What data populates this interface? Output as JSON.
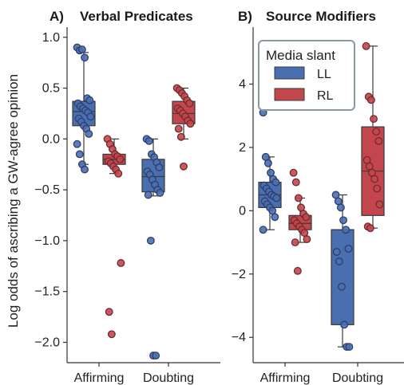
{
  "colors": {
    "LL": "#4a6fb0",
    "RL": "#c4464d",
    "LL_edge": "#2e3d6b",
    "RL_edge": "#6e2b2e",
    "legend_border": "#8a9aa0"
  },
  "legend": {
    "title": "Media slant",
    "items": [
      "LL",
      "RL"
    ],
    "placement": "top-right of panel B"
  },
  "chart_data": [
    {
      "type": "box",
      "panel_label": "A)",
      "title": "Verbal Predicates",
      "ylabel": "Log odds of ascribing a GW-agree opinion",
      "categories": [
        "Affirming",
        "Doubting"
      ],
      "ylim": [
        -2.2,
        1.1
      ],
      "yticks": [
        1.0,
        0.5,
        0.0,
        -0.5,
        -1.0,
        -1.5,
        -2.0
      ],
      "ytick_labels": [
        "1.0",
        "0.5",
        "0.0",
        "−0.5",
        "−1.0",
        "−1.5",
        "−2.0"
      ],
      "series": [
        {
          "name": "LL",
          "boxes": [
            {
              "category": "Affirming",
              "q1": 0.13,
              "median": 0.27,
              "q3": 0.37,
              "whislo": -0.25,
              "whishi": 0.85,
              "points": [
                0.9,
                0.87,
                0.88,
                0.8,
                0.4,
                0.38,
                0.35,
                0.32,
                0.3,
                0.28,
                0.26,
                0.22,
                0.2,
                0.17,
                0.13,
                0.1,
                0.05,
                -0.05,
                -0.15,
                -0.25,
                -0.3
              ]
            },
            {
              "category": "Doubting",
              "q1": -0.52,
              "median": -0.37,
              "q3": -0.2,
              "whislo": -0.56,
              "whishi": 0.0,
              "points": [
                0.0,
                -0.02,
                -0.15,
                -0.18,
                -0.23,
                -0.28,
                -0.32,
                -0.35,
                -0.4,
                -0.45,
                -0.5,
                -0.53,
                -0.55,
                -1.0,
                -2.13,
                -2.13
              ]
            }
          ]
        },
        {
          "name": "RL",
          "boxes": [
            {
              "category": "Affirming",
              "q1": -0.25,
              "median": -0.2,
              "q3": -0.15,
              "whislo": -0.34,
              "whishi": 0.0,
              "points": [
                0.0,
                -0.05,
                -0.1,
                -0.15,
                -0.17,
                -0.2,
                -0.22,
                -0.24,
                -0.27,
                -0.3,
                -0.34,
                -1.22,
                -1.7,
                -1.92
              ]
            },
            {
              "category": "Doubting",
              "q1": 0.15,
              "median": 0.25,
              "q3": 0.37,
              "whislo": 0.0,
              "whishi": 0.5,
              "points": [
                0.5,
                0.48,
                0.45,
                0.42,
                0.38,
                0.35,
                0.3,
                0.28,
                0.25,
                0.22,
                0.18,
                0.15,
                0.1,
                0.02,
                -0.27
              ]
            }
          ]
        }
      ]
    },
    {
      "type": "box",
      "panel_label": "B)",
      "title": "Source Modifiers",
      "ylabel": "",
      "categories": [
        "Affirming",
        "Doubting"
      ],
      "ylim": [
        -4.8,
        5.8
      ],
      "yticks": [
        4,
        2,
        0,
        -2,
        -4
      ],
      "ytick_labels": [
        "4",
        "2",
        "0",
        "−2",
        "−4"
      ],
      "series": [
        {
          "name": "LL",
          "boxes": [
            {
              "category": "Affirming",
              "q1": 0.1,
              "median": 0.5,
              "q3": 0.9,
              "whislo": -0.6,
              "whishi": 1.7,
              "points": [
                3.1,
                1.7,
                1.5,
                1.2,
                1.0,
                0.9,
                0.8,
                0.7,
                0.6,
                0.5,
                0.45,
                0.4,
                0.3,
                0.2,
                0.1,
                0.0,
                -0.2,
                -0.6
              ]
            },
            {
              "category": "Doubting",
              "q1": -3.6,
              "median": -0.6,
              "q3": -0.6,
              "whislo": -4.3,
              "whishi": 0.5,
              "points": [
                0.5,
                0.3,
                0.1,
                -0.3,
                -0.6,
                -1.2,
                -1.3,
                -1.6,
                -2.4,
                -3.6,
                -4.3,
                -4.3
              ]
            }
          ]
        },
        {
          "name": "RL",
          "boxes": [
            {
              "category": "Affirming",
              "q1": -0.6,
              "median": -0.4,
              "q3": -0.15,
              "whislo": -1.0,
              "whishi": 0.4,
              "points": [
                1.2,
                0.9,
                0.4,
                0.1,
                -0.1,
                -0.2,
                -0.3,
                -0.4,
                -0.5,
                -0.6,
                -0.7,
                -0.9,
                -1.0,
                -1.9
              ]
            },
            {
              "category": "Doubting",
              "q1": -0.15,
              "median": 1.25,
              "q3": 2.65,
              "whislo": -0.55,
              "whishi": 5.2,
              "points": [
                5.2,
                3.6,
                3.5,
                2.9,
                2.5,
                2.2,
                1.6,
                1.4,
                1.2,
                1.0,
                0.7,
                0.2,
                -0.5,
                -0.55
              ]
            }
          ]
        }
      ]
    }
  ]
}
